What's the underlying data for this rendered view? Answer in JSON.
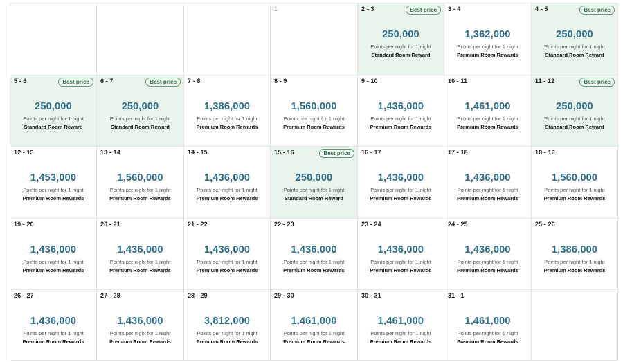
{
  "labels": {
    "best_price": "Best price",
    "points_per_night": "Points per night for 1 night"
  },
  "colors": {
    "points_text": "#2d6d8c",
    "best_price_cell_bg": "#e9f5ec",
    "badge_border": "#5a9a6d"
  },
  "cells": [
    {
      "dates": "",
      "empty": true
    },
    {
      "dates": "",
      "empty": true
    },
    {
      "dates": "",
      "empty": true
    },
    {
      "dates": "1",
      "empty": true,
      "single": true
    },
    {
      "dates": "2 - 3",
      "points": "250,000",
      "room": "Standard Room Reward",
      "best": true
    },
    {
      "dates": "3 - 4",
      "points": "1,362,000",
      "room": "Premium Room Rewards",
      "best": false
    },
    {
      "dates": "4 - 5",
      "points": "250,000",
      "room": "Standard Room Reward",
      "best": true
    },
    {
      "dates": "5 - 6",
      "points": "250,000",
      "room": "Standard Room Reward",
      "best": true
    },
    {
      "dates": "6 - 7",
      "points": "250,000",
      "room": "Standard Room Reward",
      "best": true
    },
    {
      "dates": "7 - 8",
      "points": "1,386,000",
      "room": "Premium Room Rewards",
      "best": false
    },
    {
      "dates": "8 - 9",
      "points": "1,560,000",
      "room": "Premium Room Rewards",
      "best": false
    },
    {
      "dates": "9 - 10",
      "points": "1,436,000",
      "room": "Premium Room Rewards",
      "best": false
    },
    {
      "dates": "10 - 11",
      "points": "1,461,000",
      "room": "Premium Room Rewards",
      "best": false
    },
    {
      "dates": "11 - 12",
      "points": "250,000",
      "room": "Standard Room Reward",
      "best": true
    },
    {
      "dates": "12 - 13",
      "points": "1,453,000",
      "room": "Premium Room Rewards",
      "best": false
    },
    {
      "dates": "13 - 14",
      "points": "1,560,000",
      "room": "Premium Room Rewards",
      "best": false
    },
    {
      "dates": "14 - 15",
      "points": "1,436,000",
      "room": "Premium Room Rewards",
      "best": false
    },
    {
      "dates": "15 - 16",
      "points": "250,000",
      "room": "Standard Room Reward",
      "best": true
    },
    {
      "dates": "16 - 17",
      "points": "1,436,000",
      "room": "Premium Room Rewards",
      "best": false
    },
    {
      "dates": "17 - 18",
      "points": "1,436,000",
      "room": "Premium Room Rewards",
      "best": false
    },
    {
      "dates": "18 - 19",
      "points": "1,560,000",
      "room": "Premium Room Rewards",
      "best": false
    },
    {
      "dates": "19 - 20",
      "points": "1,436,000",
      "room": "Premium Room Rewards",
      "best": false
    },
    {
      "dates": "20 - 21",
      "points": "1,436,000",
      "room": "Premium Room Rewards",
      "best": false
    },
    {
      "dates": "21 - 22",
      "points": "1,436,000",
      "room": "Premium Room Rewards",
      "best": false
    },
    {
      "dates": "22 - 23",
      "points": "1,436,000",
      "room": "Premium Room Rewards",
      "best": false
    },
    {
      "dates": "23 - 24",
      "points": "1,436,000",
      "room": "Premium Room Rewards",
      "best": false
    },
    {
      "dates": "24 - 25",
      "points": "1,436,000",
      "room": "Premium Room Rewards",
      "best": false
    },
    {
      "dates": "25 - 26",
      "points": "1,386,000",
      "room": "Premium Room Rewards",
      "best": false
    },
    {
      "dates": "26 - 27",
      "points": "1,436,000",
      "room": "Premium Room Rewards",
      "best": false
    },
    {
      "dates": "27 - 28",
      "points": "1,436,000",
      "room": "Premium Room Rewards",
      "best": false
    },
    {
      "dates": "28 - 29",
      "points": "3,812,000",
      "room": "Premium Room Rewards",
      "best": false
    },
    {
      "dates": "29 - 30",
      "points": "1,461,000",
      "room": "Premium Room Rewards",
      "best": false
    },
    {
      "dates": "30 - 31",
      "points": "1,461,000",
      "room": "Premium Room Rewards",
      "best": false
    },
    {
      "dates": "31 - 1",
      "points": "1,461,000",
      "room": "Premium Room Rewards",
      "best": false
    },
    {
      "dates": "",
      "empty": true
    }
  ]
}
